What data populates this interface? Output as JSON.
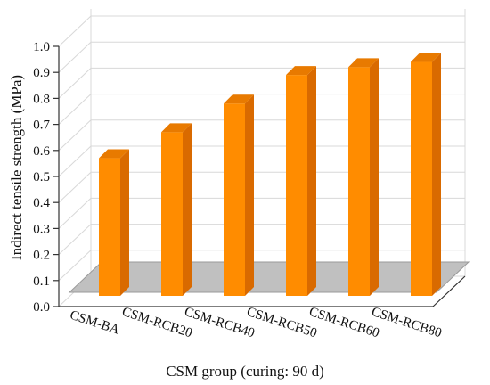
{
  "chart_data": {
    "type": "bar",
    "title": "",
    "xlabel": "CSM group (curing: 90 d)",
    "ylabel": "Indirect tensile strength (MPa)",
    "categories": [
      "CSM-BA",
      "CSM-RCB20",
      "CSM-RCB40",
      "CSM-RCB50",
      "CSM-RCB60",
      "CSM-RCB80"
    ],
    "values": [
      0.57,
      0.67,
      0.78,
      0.89,
      0.92,
      0.94
    ],
    "ylim": [
      0,
      1.0
    ],
    "yticks": [
      "0.0",
      "0.1",
      "0.2",
      "0.3",
      "0.4",
      "0.5",
      "0.6",
      "0.7",
      "0.8",
      "0.9",
      "1.0"
    ],
    "grid": true,
    "style": "3d-bars",
    "colors": {
      "bar_front": "#ff8c00",
      "bar_side": "#d96a00",
      "bar_top": "#e87a00",
      "floor": "#c0c0c0",
      "grid": "#d8d8d8"
    }
  }
}
